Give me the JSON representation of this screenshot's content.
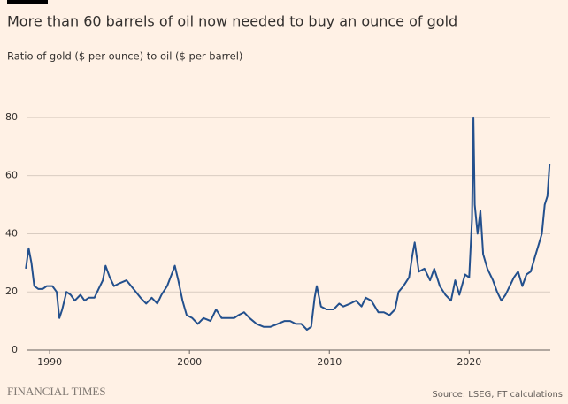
{
  "chart_data": {
    "type": "line",
    "title": "More than 60 barrels of oil now needed to buy an ounce of gold",
    "subtitle": "Ratio of gold ($ per ounce) to oil ($ per barrel)",
    "source": "Source: LSEG, FT calculations",
    "publisher": "FINANCIAL TIMES",
    "xlim": [
      1988.35,
      2025.8
    ],
    "xticks": [
      1990,
      2000,
      2010,
      2020
    ],
    "ylim": [
      0,
      90
    ],
    "yticks": [
      0,
      20,
      40,
      60,
      80
    ],
    "grid": true,
    "series": [
      {
        "name": "Gold/oil ratio",
        "color": "#23508d",
        "x": [
          1988.3,
          1988.5,
          1988.7,
          1988.9,
          1989.2,
          1989.5,
          1989.8,
          1990.2,
          1990.5,
          1990.7,
          1990.9,
          1991.2,
          1991.5,
          1991.8,
          1992.2,
          1992.5,
          1992.8,
          1993.2,
          1993.5,
          1993.8,
          1994.0,
          1994.3,
          1994.6,
          1995.0,
          1995.5,
          1996.0,
          1996.5,
          1996.9,
          1997.3,
          1997.7,
          1998.0,
          1998.4,
          1998.8,
          1998.95,
          1999.2,
          1999.5,
          1999.8,
          2000.2,
          2000.6,
          2001.0,
          2001.5,
          2001.9,
          2002.3,
          2002.8,
          2003.2,
          2003.5,
          2003.9,
          2004.3,
          2004.8,
          2005.3,
          2005.8,
          2006.3,
          2006.8,
          2007.2,
          2007.6,
          2008.0,
          2008.4,
          2008.7,
          2008.95,
          2009.1,
          2009.4,
          2009.8,
          2010.3,
          2010.7,
          2011.0,
          2011.5,
          2011.9,
          2012.3,
          2012.6,
          2013.0,
          2013.5,
          2013.9,
          2014.3,
          2014.7,
          2014.95,
          2015.3,
          2015.7,
          2015.95,
          2016.1,
          2016.4,
          2016.8,
          2017.2,
          2017.5,
          2017.9,
          2018.3,
          2018.7,
          2019.0,
          2019.3,
          2019.7,
          2020.0,
          2020.2,
          2020.3,
          2020.4,
          2020.6,
          2020.8,
          2021.0,
          2021.3,
          2021.7,
          2022.0,
          2022.3,
          2022.6,
          2022.9,
          2023.2,
          2023.5,
          2023.8,
          2024.1,
          2024.4,
          2024.7,
          2024.95,
          2025.2,
          2025.4,
          2025.6,
          2025.75
        ],
        "values": [
          28,
          35,
          30,
          22,
          21,
          21,
          22,
          22,
          20,
          11,
          14,
          20,
          19,
          17,
          19,
          17,
          18,
          18,
          21,
          24,
          29,
          25,
          22,
          23,
          24,
          21,
          18,
          16,
          18,
          16,
          19,
          22,
          27,
          29,
          24,
          17,
          12,
          11,
          9,
          11,
          10,
          14,
          11,
          11,
          11,
          12,
          13,
          11,
          9,
          8,
          8,
          9,
          10,
          10,
          9,
          9,
          7,
          8,
          18,
          22,
          15,
          14,
          14,
          16,
          15,
          16,
          17,
          15,
          18,
          17,
          13,
          13,
          12,
          14,
          20,
          22,
          25,
          33,
          37,
          27,
          28,
          24,
          28,
          22,
          19,
          17,
          24,
          19,
          26,
          25,
          45,
          80,
          50,
          40,
          48,
          33,
          28,
          24,
          20,
          17,
          19,
          22,
          25,
          27,
          22,
          26,
          27,
          32,
          36,
          40,
          50,
          53,
          64
        ]
      }
    ]
  }
}
